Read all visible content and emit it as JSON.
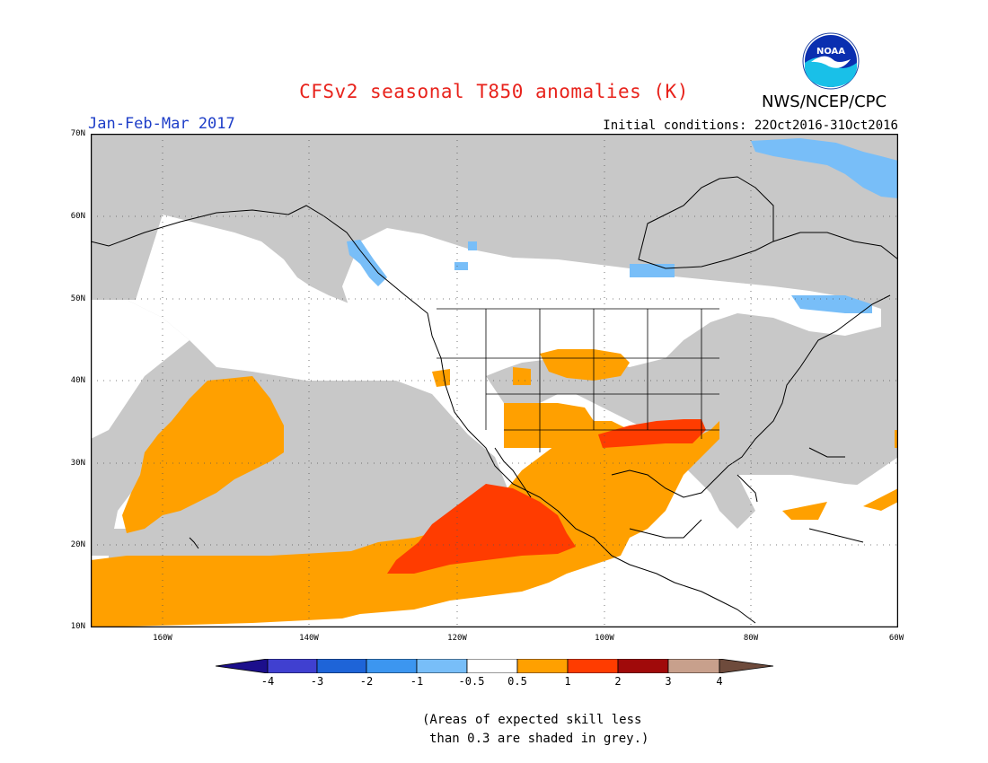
{
  "header": {
    "title": "CFSv2 seasonal T850 anomalies (K)",
    "agency": "NWS/NCEP/CPC",
    "logo_text": "NOAA",
    "season": "Jan-Feb-Mar 2017",
    "initial_conditions": "Initial conditions: 22Oct2016-31Oct2016"
  },
  "axes": {
    "lat_labels": [
      "70N",
      "60N",
      "50N",
      "40N",
      "30N",
      "20N",
      "10N"
    ],
    "lon_labels": [
      "160W",
      "140W",
      "120W",
      "100W",
      "80W",
      "60W"
    ]
  },
  "colorbar": {
    "labels": [
      "-4",
      "-3",
      "-2",
      "-1",
      "-0.5",
      "0.5",
      "1",
      "2",
      "3",
      "4"
    ],
    "colors": [
      "#1c0f8c",
      "#4040d0",
      "#1e64d8",
      "#3c96f0",
      "#78bef8",
      "#ffffff",
      "#ffa000",
      "#ff3c00",
      "#a00a0a",
      "#c8a08c",
      "#6e4b3c"
    ]
  },
  "legend_note": {
    "line1": "(Areas of expected skill less",
    "line2": "than 0.3 are shaded in grey.)"
  },
  "colors": {
    "grey": "#c8c8c8",
    "white": "#ffffff",
    "orange": "#ffa000",
    "red": "#ff3c00",
    "light_blue": "#78bef8",
    "title_red": "#e8231c",
    "season_blue": "#1e3ec8"
  }
}
